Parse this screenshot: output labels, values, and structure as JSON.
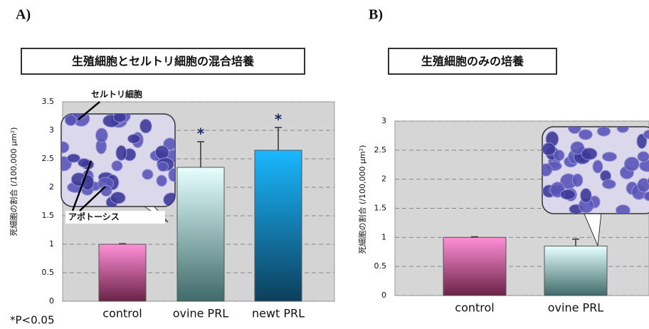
{
  "chart_data": [
    {
      "type": "bar",
      "panel": "A)",
      "title": "生殖細胞とセルトリ細胞の混合培養",
      "ylabel": "死細胞の割合 (/100,000 μm²)",
      "categories": [
        "control",
        "ovine PRL",
        "newt PRL"
      ],
      "values": [
        1.0,
        2.35,
        2.65
      ],
      "errors": [
        0.01,
        0.45,
        0.4
      ],
      "significance": [
        null,
        "*",
        "*"
      ],
      "bar_gradients": [
        [
          "#ff8fd8",
          "#6a2346"
        ],
        [
          "#e6ffff",
          "#3f6b6a"
        ],
        [
          "#1ab8ff",
          "#0d3f5c"
        ]
      ],
      "ylim": [
        0,
        3.5
      ],
      "yticks": [
        0,
        0.5,
        1,
        1.5,
        2,
        2.5,
        3,
        3.5
      ],
      "grid": true,
      "annotations": [
        "セルトリ細胞",
        "アポトーシス"
      ],
      "footnote": "*P<0.05"
    },
    {
      "type": "bar",
      "panel": "B)",
      "title": "生殖細胞のみの培養",
      "ylabel": "死細胞の割合 (/100,000 μm²)",
      "categories": [
        "control",
        "ovine PRL"
      ],
      "values": [
        1.0,
        0.85
      ],
      "errors": [
        0.01,
        0.12
      ],
      "bar_gradients": [
        [
          "#ff8fd8",
          "#6a2346"
        ],
        [
          "#e6ffff",
          "#3f6b6a"
        ]
      ],
      "ylim": [
        0,
        3
      ],
      "yticks": [
        0,
        0.5,
        1,
        1.5,
        2,
        2.5,
        3
      ],
      "grid": true
    }
  ]
}
